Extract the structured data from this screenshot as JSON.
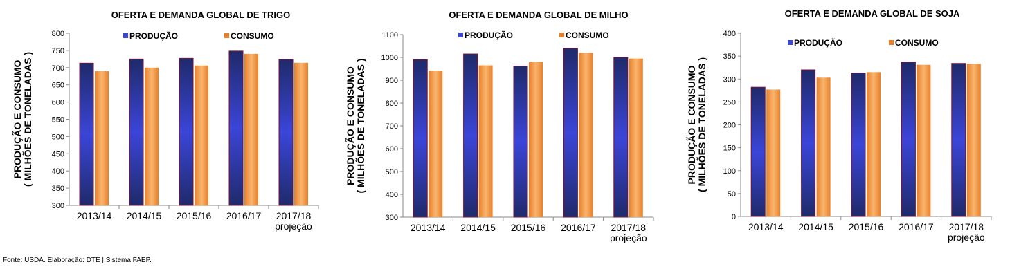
{
  "source_note": "Fonte: USDA. Elaboração: DTE | Sistema FAEP.",
  "colors": {
    "producao_dark": "#1f2a6b",
    "producao_light": "#3b45d8",
    "producao_border": "#7a1230",
    "consumo_dark": "#e8802a",
    "consumo_light": "#f9b56e",
    "axis": "#8a8a8a",
    "text": "#000000"
  },
  "chart_data": [
    {
      "type": "bar",
      "title": "OFERTA E DEMANDA GLOBAL DE TRIGO",
      "ylabel_line1": "PRODUÇÃO E CONSUMO",
      "ylabel_line2": "( MILHÕES DE TONELADAS )",
      "categories": [
        [
          "2013/14"
        ],
        [
          "2014/15"
        ],
        [
          "2015/16"
        ],
        [
          "2016/17"
        ],
        [
          "2017/18",
          "projeção"
        ]
      ],
      "ylim": [
        300,
        800
      ],
      "yticks": [
        300,
        350,
        400,
        450,
        500,
        550,
        600,
        650,
        700,
        750,
        800
      ],
      "legend_placement": "top",
      "series": [
        {
          "name": "PRODUÇÃO",
          "values": [
            713,
            725,
            727,
            748,
            724
          ]
        },
        {
          "name": "CONSUMO",
          "values": [
            690,
            700,
            706,
            740,
            714
          ]
        }
      ]
    },
    {
      "type": "bar",
      "title": "OFERTA E DEMANDA GLOBAL DE MILHO",
      "ylabel_line1": "PRODUÇÃO E CONSUMO",
      "ylabel_line2": "( MILHÕES DE TONELADAS )",
      "categories": [
        [
          "2013/14"
        ],
        [
          "2014/15"
        ],
        [
          "2015/16"
        ],
        [
          "2016/17"
        ],
        [
          "2017/18",
          "projeção"
        ]
      ],
      "ylim": [
        300,
        1100
      ],
      "yticks": [
        300,
        400,
        500,
        600,
        700,
        800,
        900,
        1000,
        1100
      ],
      "legend_placement": "top",
      "series": [
        {
          "name": "PRODUÇÃO",
          "values": [
            990,
            1015,
            962,
            1040,
            1000
          ]
        },
        {
          "name": "CONSUMO",
          "values": [
            942,
            965,
            980,
            1020,
            995
          ]
        }
      ]
    },
    {
      "type": "bar",
      "title": "OFERTA E DEMANDA GLOBAL DE SOJA",
      "ylabel_line1": "PRODUÇÃO E CONSUMO",
      "ylabel_line2": "( MILHÕES DE TONELADAS )",
      "categories": [
        [
          "2013/14"
        ],
        [
          "2014/15"
        ],
        [
          "2015/16"
        ],
        [
          "2016/17"
        ],
        [
          "2017/18",
          "projeção"
        ]
      ],
      "ylim": [
        0,
        400
      ],
      "yticks": [
        0,
        50,
        100,
        150,
        200,
        250,
        300,
        350,
        400
      ],
      "legend_placement": "top",
      "series": [
        {
          "name": "PRODUÇÃO",
          "values": [
            282,
            320,
            313,
            337,
            334
          ]
        },
        {
          "name": "CONSUMO",
          "values": [
            277,
            303,
            315,
            331,
            333
          ]
        }
      ]
    }
  ]
}
